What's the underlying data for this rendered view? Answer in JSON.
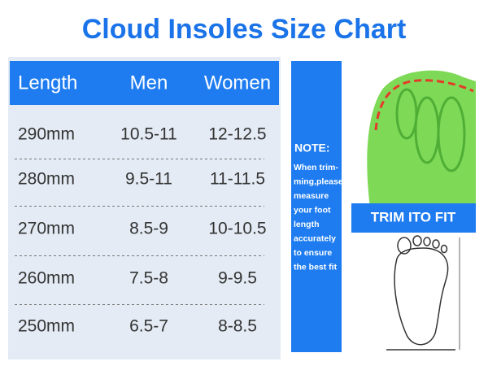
{
  "title": "Cloud Insoles Size Chart",
  "table": {
    "header": [
      "Length",
      "Men",
      "Women"
    ],
    "rows": [
      [
        "290mm",
        "10.5-11",
        "12-12.5"
      ],
      [
        "280mm",
        "9.5-11",
        "11-11.5"
      ],
      [
        "270mm",
        "8.5-9",
        "10-10.5"
      ],
      [
        "260mm",
        "7.5-8",
        "9-9.5"
      ],
      [
        "250mm",
        "6.5-7",
        "8-8.5"
      ]
    ]
  },
  "note": {
    "title": "NOTE:",
    "lines": [
      "When trim-",
      "ming,please",
      "measure",
      "your foot",
      "length",
      "accurately",
      "to ensure",
      "the best fit"
    ]
  },
  "banner": "TRIM ITO FIT"
}
